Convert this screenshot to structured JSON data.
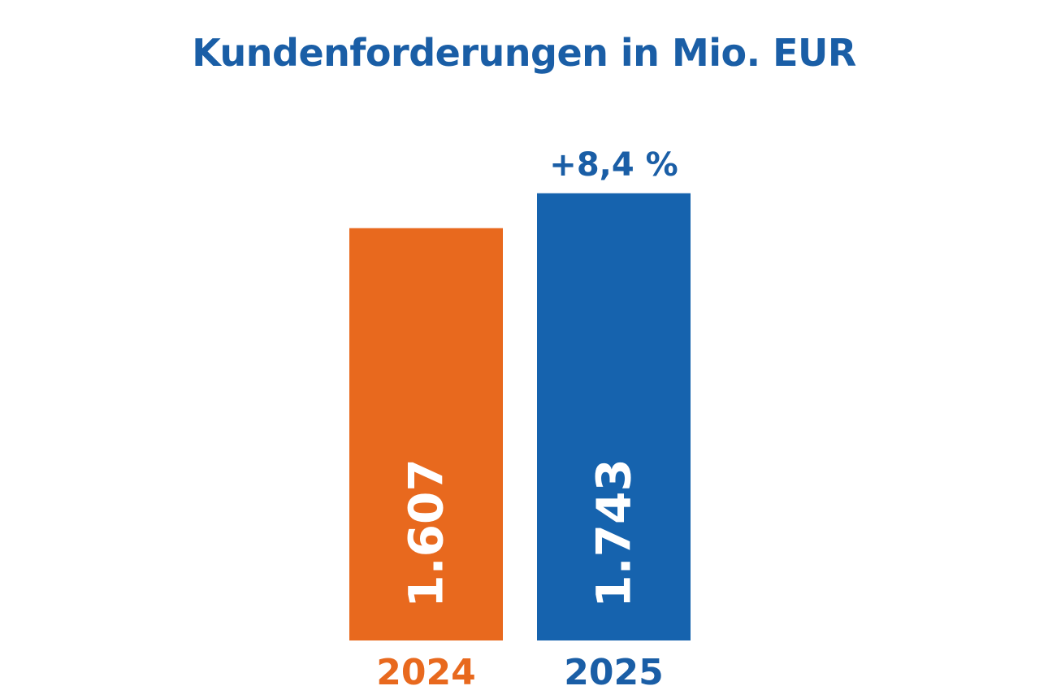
{
  "title": "Kundenforderungen in Mio. EUR",
  "colors": {
    "title": "#1a5ea6",
    "bar_2024": "#e8691e",
    "bar_2025": "#1663ae",
    "bar_value_text": "#ffffff",
    "change_label": "#1a5ea6"
  },
  "chart_data": {
    "type": "bar",
    "title": "Kundenforderungen in Mio. EUR",
    "categories": [
      "2024",
      "2025"
    ],
    "values": [
      1607,
      1743
    ],
    "value_labels": [
      "1.607",
      "1.743"
    ],
    "bar_colors": [
      "#e8691e",
      "#1663ae"
    ],
    "category_label_colors": [
      "#e8691e",
      "#1a5ea6"
    ],
    "annotations": [
      {
        "category": "2025",
        "text": "+8,4 %"
      }
    ],
    "xlabel": "",
    "ylabel": "",
    "ylim": [
      0,
      1850
    ],
    "grid": false,
    "legend": "none"
  }
}
